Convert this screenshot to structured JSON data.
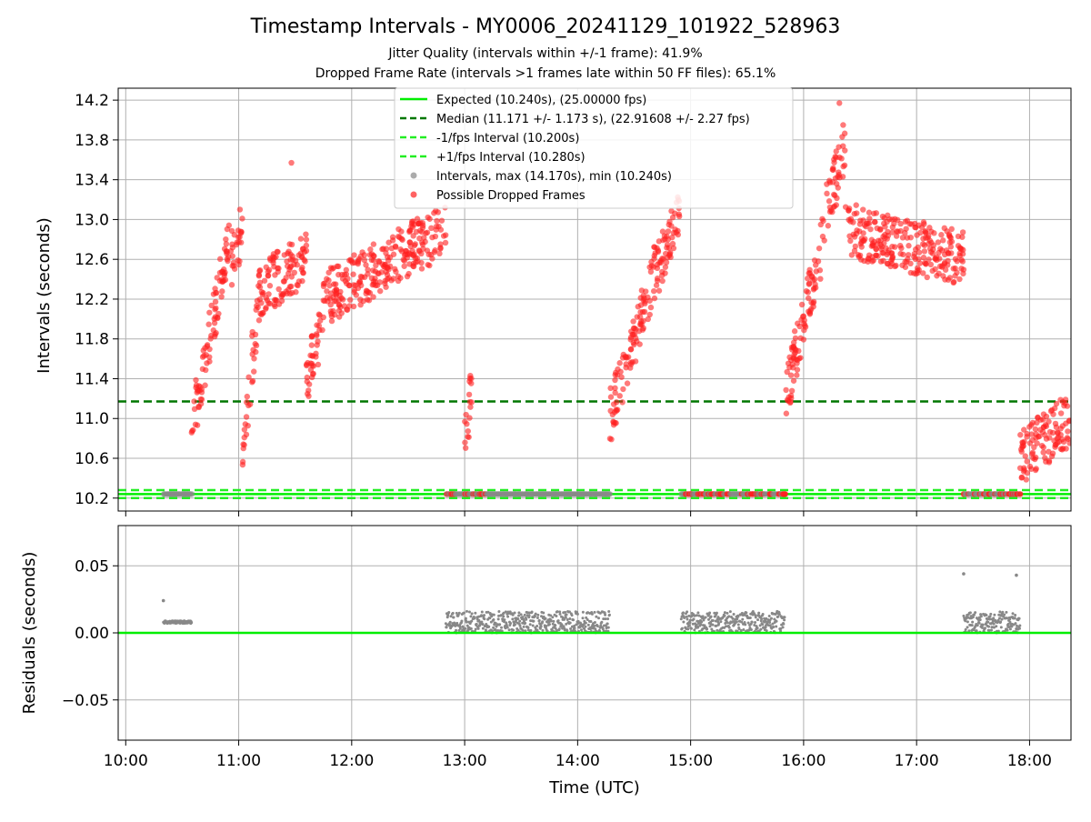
{
  "title": "Timestamp Intervals - MY0006_20241129_101922_528963",
  "subtitle_1": "Jitter Quality (intervals within +/-1 frame): 41.9%",
  "subtitle_2": "Dropped Frame Rate (intervals >1 frames late within 50 FF files): 65.1%",
  "colors": {
    "expected": "#00ee00",
    "median": "#007700",
    "fps_interval": "#22ee22",
    "interval_points": "#888888",
    "dropped": "#ff2020",
    "grid": "#b0b0b0"
  },
  "chart_data": [
    {
      "type": "scatter",
      "name": "top-panel",
      "ylabel": "Intervals (seconds)",
      "xlim": [
        "09:56",
        "18:22"
      ],
      "ylim": [
        10.07,
        14.32
      ],
      "grid": true,
      "legend_position": "top-center",
      "x_ticks": [
        "10:00",
        "11:00",
        "12:00",
        "13:00",
        "14:00",
        "15:00",
        "16:00",
        "17:00",
        "18:00"
      ],
      "y_ticks": [
        "10.2",
        "10.6",
        "11.0",
        "11.4",
        "11.8",
        "12.2",
        "12.6",
        "13.0",
        "13.4",
        "13.8",
        "14.2"
      ],
      "legend": [
        "Expected (10.240s), (25.00000 fps)",
        "Median (11.171 +/- 1.173 s), (22.91608 +/- 2.27 fps)",
        "-1/fps Interval (10.200s)",
        "+1/fps Interval (10.280s)",
        "Intervals, max (14.170s), min (10.240s)",
        "Possible Dropped Frames"
      ],
      "lines": {
        "expected": 10.24,
        "median": 11.171,
        "minus_fps": 10.2,
        "plus_fps": 10.28
      },
      "series_segments": [
        {
          "start": "10:20",
          "end": "10:35",
          "kind": "flat",
          "y": 10.24
        },
        {
          "start": "10:35",
          "end": "10:56",
          "kind": "ramp",
          "from": 10.9,
          "to": 12.9
        },
        {
          "start": "10:56",
          "end": "11:02",
          "kind": "ramp",
          "from": 12.6,
          "to": 12.9
        },
        {
          "start": "11:02",
          "end": "11:12",
          "kind": "ramp",
          "from": 10.7,
          "to": 12.4
        },
        {
          "start": "11:12",
          "end": "11:36",
          "kind": "ramp",
          "from": 12.3,
          "to": 12.6
        },
        {
          "start": "11:36",
          "end": "11:45",
          "kind": "ramp",
          "from": 11.4,
          "to": 12.0
        },
        {
          "start": "11:45",
          "end": "12:50",
          "kind": "ramp",
          "from": 12.2,
          "to": 12.9
        },
        {
          "start": "12:50",
          "end": "13:12",
          "kind": "flat",
          "y": 10.24
        },
        {
          "start": "13:00",
          "end": "13:04",
          "kind": "ramp",
          "from": 10.8,
          "to": 11.3
        },
        {
          "start": "13:12",
          "end": "14:17",
          "kind": "flat",
          "y": 10.24
        },
        {
          "start": "14:17",
          "end": "14:43",
          "kind": "ramp",
          "from": 11.0,
          "to": 12.6
        },
        {
          "start": "14:43",
          "end": "14:55",
          "kind": "ramp",
          "from": 12.5,
          "to": 13.1
        },
        {
          "start": "14:55",
          "end": "15:50",
          "kind": "flat",
          "y": 10.24
        },
        {
          "start": "15:50",
          "end": "16:12",
          "kind": "ramp",
          "from": 11.2,
          "to": 12.9
        },
        {
          "start": "16:12",
          "end": "16:22",
          "kind": "ramp",
          "from": 13.1,
          "to": 13.7
        },
        {
          "start": "16:22",
          "end": "17:25",
          "kind": "ramp",
          "from": 12.9,
          "to": 12.6
        },
        {
          "start": "17:25",
          "end": "17:55",
          "kind": "flat",
          "y": 10.24
        },
        {
          "start": "17:55",
          "end": "18:22",
          "kind": "ramp",
          "from": 10.6,
          "to": 11.0
        }
      ]
    },
    {
      "type": "scatter",
      "name": "bottom-panel",
      "xlabel": "Time (UTC)",
      "ylabel": "Residuals (seconds)",
      "xlim": [
        "09:56",
        "18:22"
      ],
      "ylim": [
        -0.08,
        0.08
      ],
      "grid": true,
      "x_ticks": [
        "10:00",
        "11:00",
        "12:00",
        "13:00",
        "14:00",
        "15:00",
        "16:00",
        "17:00",
        "18:00"
      ],
      "y_ticks": [
        "0.05",
        "0.00",
        "−0.05"
      ],
      "zero_line": 0.0,
      "residual_bands": [
        {
          "start": "10:20",
          "end": "10:35",
          "level": 0.008
        },
        {
          "start": "12:50",
          "end": "14:17",
          "level_max": 0.016
        },
        {
          "start": "14:55",
          "end": "15:50",
          "level_max": 0.016
        },
        {
          "start": "17:25",
          "end": "17:55",
          "level_max": 0.016
        }
      ],
      "outliers": [
        {
          "x": "10:20",
          "y": 0.024
        },
        {
          "x": "17:25",
          "y": 0.044
        },
        {
          "x": "17:53",
          "y": 0.043
        }
      ]
    }
  ]
}
